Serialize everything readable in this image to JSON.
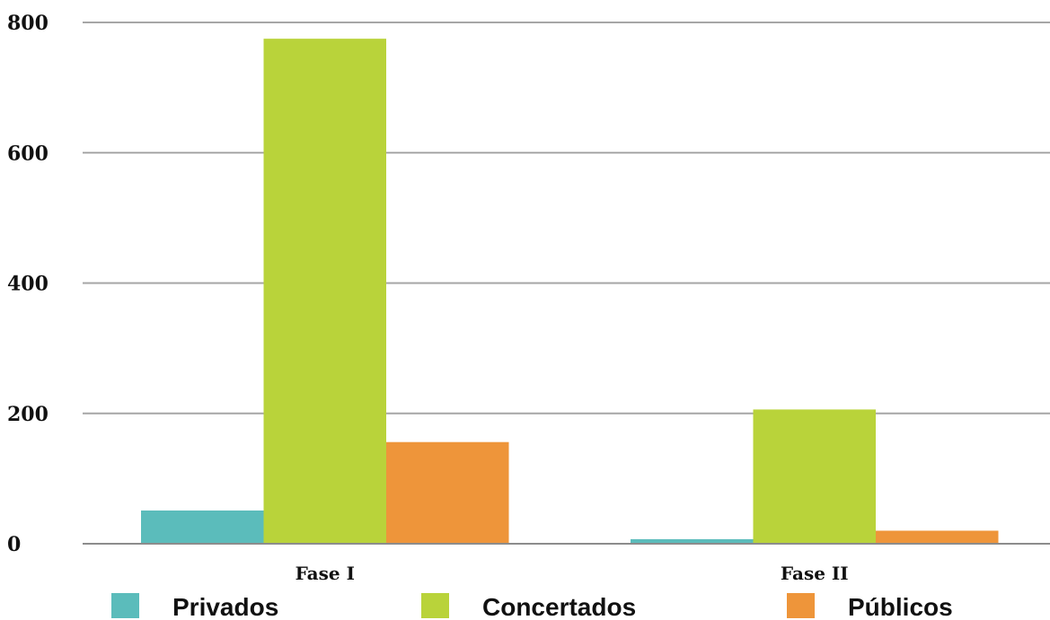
{
  "chart_data": {
    "type": "bar",
    "categories": [
      "Fase I",
      "Fase II"
    ],
    "series": [
      {
        "name": "Privados",
        "values": [
          51,
          7
        ],
        "color": "#5bbcbb"
      },
      {
        "name": "Concertados",
        "values": [
          775,
          206
        ],
        "color": "#b9d33a"
      },
      {
        "name": "Públicos",
        "values": [
          156,
          20
        ],
        "color": "#ee953a"
      }
    ],
    "yticks": [
      "0",
      "200",
      "400",
      "600",
      "800"
    ],
    "ylim": [
      0,
      800
    ],
    "grid": true,
    "legend_position": "bottom"
  }
}
